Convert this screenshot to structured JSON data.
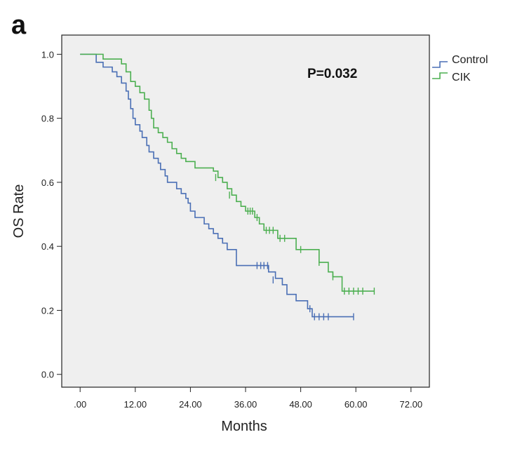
{
  "panel_label": "a",
  "chart_data": {
    "type": "line",
    "subtype": "kaplan-meier step",
    "title": "",
    "xlabel": "Months",
    "ylabel": "OS Rate",
    "xlim": [
      -4,
      76
    ],
    "ylim": [
      -0.04,
      1.06
    ],
    "x_ticks": [
      0,
      12,
      24,
      36,
      48,
      60,
      72
    ],
    "x_tick_labels": [
      ".00",
      "12.00",
      "24.00",
      "36.00",
      "48.00",
      "60.00",
      "72.00"
    ],
    "y_ticks": [
      0.0,
      0.2,
      0.4,
      0.6,
      0.8,
      1.0
    ],
    "y_tick_labels": [
      "0.0",
      "0.2",
      "0.4",
      "0.6",
      "0.8",
      "1.0"
    ],
    "annotation": "P=0.032",
    "legend_position": "right-top",
    "series": [
      {
        "name": "Control",
        "color": "#4a6fb5",
        "steps": [
          [
            0,
            1.0
          ],
          [
            3.5,
            0.975
          ],
          [
            5,
            0.96
          ],
          [
            7,
            0.945
          ],
          [
            8,
            0.93
          ],
          [
            9,
            0.91
          ],
          [
            10,
            0.885
          ],
          [
            10.5,
            0.86
          ],
          [
            11,
            0.83
          ],
          [
            11.5,
            0.8
          ],
          [
            12,
            0.78
          ],
          [
            13,
            0.76
          ],
          [
            13.5,
            0.74
          ],
          [
            14.5,
            0.715
          ],
          [
            15,
            0.695
          ],
          [
            16,
            0.675
          ],
          [
            17,
            0.66
          ],
          [
            17.5,
            0.64
          ],
          [
            18.5,
            0.62
          ],
          [
            19,
            0.6
          ],
          [
            21,
            0.58
          ],
          [
            22,
            0.565
          ],
          [
            23,
            0.55
          ],
          [
            23.5,
            0.535
          ],
          [
            24,
            0.51
          ],
          [
            25,
            0.49
          ],
          [
            27,
            0.47
          ],
          [
            28,
            0.455
          ],
          [
            29,
            0.44
          ],
          [
            30,
            0.425
          ],
          [
            31,
            0.41
          ],
          [
            32,
            0.39
          ],
          [
            34,
            0.34
          ],
          [
            41,
            0.32
          ],
          [
            42.5,
            0.3
          ],
          [
            44,
            0.28
          ],
          [
            45,
            0.25
          ],
          [
            47,
            0.23
          ],
          [
            49.5,
            0.205
          ],
          [
            50.5,
            0.18
          ],
          [
            59.5,
            0.18
          ]
        ],
        "censored": [
          [
            38.5,
            0.34
          ],
          [
            39.3,
            0.34
          ],
          [
            40,
            0.34
          ],
          [
            40.8,
            0.34
          ],
          [
            42,
            0.295
          ],
          [
            50,
            0.205
          ],
          [
            51,
            0.18
          ],
          [
            52,
            0.18
          ],
          [
            53,
            0.18
          ],
          [
            54,
            0.18
          ],
          [
            59.5,
            0.18
          ]
        ]
      },
      {
        "name": "CIK",
        "color": "#4caf50",
        "steps": [
          [
            0,
            1.0
          ],
          [
            5,
            0.985
          ],
          [
            9,
            0.97
          ],
          [
            10,
            0.945
          ],
          [
            11,
            0.915
          ],
          [
            12,
            0.9
          ],
          [
            13,
            0.88
          ],
          [
            14,
            0.86
          ],
          [
            15,
            0.825
          ],
          [
            15.5,
            0.8
          ],
          [
            16,
            0.77
          ],
          [
            17,
            0.755
          ],
          [
            18,
            0.74
          ],
          [
            19,
            0.725
          ],
          [
            20,
            0.705
          ],
          [
            21,
            0.69
          ],
          [
            22,
            0.675
          ],
          [
            23,
            0.665
          ],
          [
            25,
            0.645
          ],
          [
            29,
            0.635
          ],
          [
            30,
            0.615
          ],
          [
            31,
            0.6
          ],
          [
            32,
            0.58
          ],
          [
            33,
            0.56
          ],
          [
            34,
            0.54
          ],
          [
            35,
            0.525
          ],
          [
            36,
            0.51
          ],
          [
            38,
            0.49
          ],
          [
            39,
            0.47
          ],
          [
            40,
            0.45
          ],
          [
            43,
            0.425
          ],
          [
            47,
            0.39
          ],
          [
            52,
            0.35
          ],
          [
            54,
            0.32
          ],
          [
            55,
            0.305
          ],
          [
            57,
            0.26
          ],
          [
            64,
            0.26
          ]
        ],
        "censored": [
          [
            29.5,
            0.615
          ],
          [
            32.5,
            0.56
          ],
          [
            36.5,
            0.51
          ],
          [
            37,
            0.51
          ],
          [
            37.5,
            0.51
          ],
          [
            38.5,
            0.49
          ],
          [
            40.5,
            0.45
          ],
          [
            41.2,
            0.45
          ],
          [
            42,
            0.45
          ],
          [
            43.5,
            0.425
          ],
          [
            44.5,
            0.425
          ],
          [
            48,
            0.39
          ],
          [
            52,
            0.35
          ],
          [
            55,
            0.305
          ],
          [
            57.5,
            0.26
          ],
          [
            58.5,
            0.26
          ],
          [
            59.5,
            0.26
          ],
          [
            60.5,
            0.26
          ],
          [
            61.5,
            0.26
          ],
          [
            64,
            0.26
          ]
        ]
      }
    ]
  }
}
